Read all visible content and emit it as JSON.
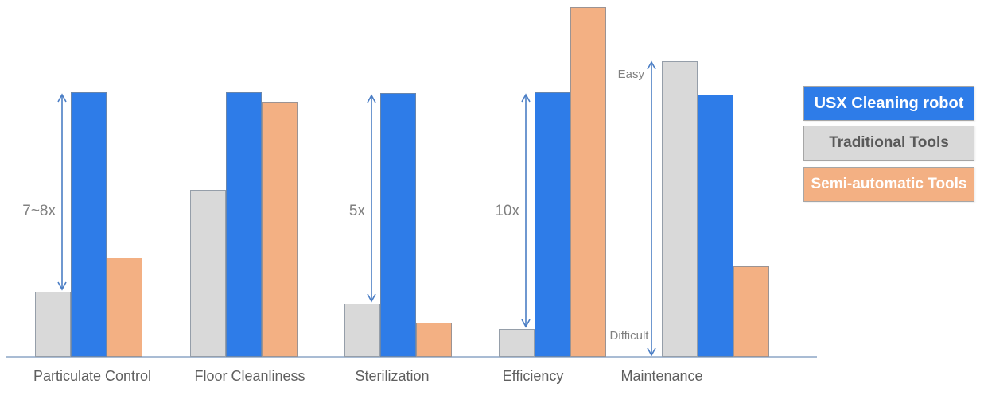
{
  "chart_data": {
    "type": "bar",
    "title": "",
    "categories": [
      "Particulate Control",
      "Floor Cleanliness",
      "Sterilization",
      "Efficiency",
      "Maintenance"
    ],
    "series": [
      {
        "name": "Traditional Tools",
        "color": "#d9d9d9",
        "values": [
          18.3,
          46.8,
          15.0,
          7.8,
          82.9
        ]
      },
      {
        "name": "USX Cleaning robot",
        "color": "#2e7ce8",
        "values": [
          74.2,
          74.2,
          73.9,
          74.2,
          73.5
        ]
      },
      {
        "name": "Semi-automatic Tools",
        "color": "#f3b083",
        "values": [
          27.8,
          71.5,
          9.6,
          98.0,
          25.4
        ]
      }
    ],
    "value_unit": "relative bar height, % of plot area (no numeric axis shown)",
    "ylim": [
      0,
      100
    ],
    "grid": false,
    "legend_position": "right",
    "annotations": [
      {
        "type": "range-arrow",
        "category": "Particulate Control",
        "text": "7~8x"
      },
      {
        "type": "range-arrow",
        "category": "Sterilization",
        "text": "5x"
      },
      {
        "type": "range-arrow",
        "category": "Efficiency",
        "text": "10x"
      },
      {
        "type": "vertical-scale-arrow",
        "category": "Maintenance",
        "top_text": "Easy",
        "bottom_text": "Difficult"
      }
    ]
  },
  "legend": {
    "items": [
      {
        "label": "USX Cleaning robot",
        "bg": "#2e7ce8",
        "text_color": "#ffffff"
      },
      {
        "label": "Traditional Tools",
        "bg": "#d9d9d9",
        "text_color": "#595959"
      },
      {
        "label": "Semi-automatic Tools",
        "bg": "#f3b083",
        "text_color": "#ffffff"
      }
    ]
  },
  "colors": {
    "usx_blue": "#2e7ce8",
    "traditional_gray": "#d9d9d9",
    "semi_automatic_orange": "#f3b083",
    "axis_line": "#a9bcd4",
    "arrow_blue": "#4b7ec5",
    "category_text": "#5f5f5f",
    "annotation_text": "#808080"
  }
}
